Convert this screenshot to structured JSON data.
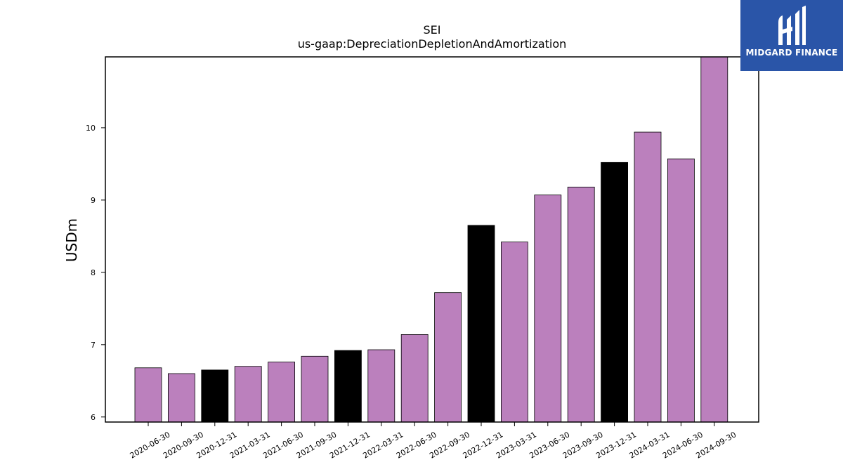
{
  "colors": {
    "bar_default": "#bb80bd",
    "bar_highlight": "#000000",
    "logo_bg": "#2a55a8"
  },
  "logo": {
    "text": "MIDGARD FINANCE",
    "icon": "midgard-logo-icon"
  },
  "chart_data": {
    "type": "bar",
    "title": "SEI",
    "subtitle": "us-gaap:DepreciationDepletionAndAmortization",
    "xlabel": "",
    "ylabel": "USDm",
    "ylim": [
      5.93,
      10.98
    ],
    "yticks": [
      6,
      7,
      8,
      9,
      10
    ],
    "grid": false,
    "categories": [
      "2020-06-30",
      "2020-09-30",
      "2020-12-31",
      "2021-03-31",
      "2021-06-30",
      "2021-09-30",
      "2021-12-31",
      "2022-03-31",
      "2022-06-30",
      "2022-09-30",
      "2022-12-31",
      "2023-03-31",
      "2023-06-30",
      "2023-09-30",
      "2023-12-31",
      "2024-03-31",
      "2024-06-30",
      "2024-09-30"
    ],
    "values": [
      6.68,
      6.6,
      6.65,
      6.7,
      6.76,
      6.84,
      6.92,
      6.93,
      7.14,
      7.72,
      8.65,
      8.42,
      9.07,
      9.18,
      9.52,
      9.94,
      9.57,
      10.98
    ],
    "highlight": [
      false,
      false,
      true,
      false,
      false,
      false,
      true,
      false,
      false,
      false,
      true,
      false,
      false,
      false,
      true,
      false,
      false,
      false
    ]
  }
}
